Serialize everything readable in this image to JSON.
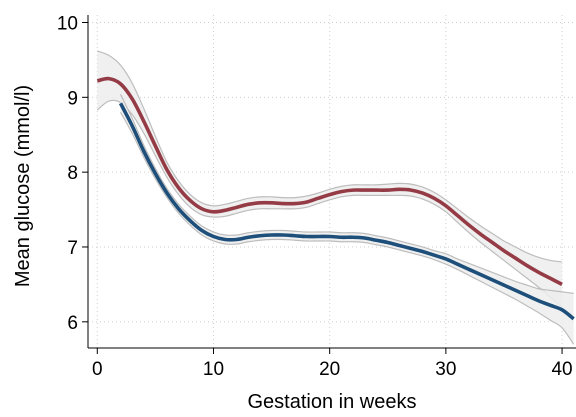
{
  "chart_data": {
    "type": "line",
    "title": "",
    "xlabel": "Gestation in weeks",
    "ylabel": "Mean glucose (mmol/l)",
    "xlim": [
      -0.8,
      41.2
    ],
    "ylim": [
      5.65,
      10.1
    ],
    "xticks": [
      0,
      10,
      20,
      30,
      40
    ],
    "yticks": [
      6,
      7,
      8,
      9,
      10
    ],
    "grid": true,
    "legend": "none",
    "band_color": "#ededed",
    "band_edge_color": "#bdbdbd",
    "series": [
      {
        "color": "#943b46",
        "x": [
          0,
          1,
          2,
          3,
          4,
          5,
          6,
          7,
          8,
          9,
          10,
          11,
          12,
          13,
          14,
          15,
          16,
          17,
          18,
          19,
          20,
          21,
          22,
          23,
          24,
          25,
          26,
          27,
          28,
          29,
          30,
          31,
          32,
          33,
          34,
          35,
          36,
          37,
          38,
          39,
          40
        ],
        "y": [
          9.22,
          9.25,
          9.18,
          8.98,
          8.68,
          8.35,
          8.03,
          7.79,
          7.62,
          7.51,
          7.47,
          7.49,
          7.53,
          7.57,
          7.59,
          7.59,
          7.58,
          7.58,
          7.6,
          7.65,
          7.7,
          7.74,
          7.76,
          7.76,
          7.76,
          7.76,
          7.77,
          7.76,
          7.72,
          7.65,
          7.55,
          7.42,
          7.29,
          7.17,
          7.06,
          6.95,
          6.85,
          6.75,
          6.66,
          6.58,
          6.5
        ],
        "lower": [
          8.83,
          8.95,
          8.93,
          8.77,
          8.52,
          8.22,
          7.93,
          7.7,
          7.53,
          7.43,
          7.4,
          7.41,
          7.45,
          7.49,
          7.51,
          7.51,
          7.51,
          7.51,
          7.53,
          7.58,
          7.63,
          7.67,
          7.69,
          7.69,
          7.69,
          7.69,
          7.69,
          7.68,
          7.64,
          7.57,
          7.47,
          7.33,
          7.19,
          7.06,
          6.94,
          6.82,
          6.7,
          6.58,
          6.46,
          6.33,
          6.2
        ],
        "upper": [
          9.62,
          9.56,
          9.43,
          9.19,
          8.85,
          8.48,
          8.13,
          7.88,
          7.7,
          7.59,
          7.55,
          7.57,
          7.61,
          7.65,
          7.67,
          7.67,
          7.66,
          7.66,
          7.68,
          7.72,
          7.77,
          7.81,
          7.83,
          7.83,
          7.83,
          7.84,
          7.85,
          7.84,
          7.8,
          7.73,
          7.63,
          7.51,
          7.39,
          7.28,
          7.18,
          7.08,
          7.0,
          6.92,
          6.86,
          6.82,
          6.8
        ]
      },
      {
        "color": "#1d4f7a",
        "x": [
          2,
          3,
          4,
          5,
          6,
          7,
          8,
          9,
          10,
          11,
          12,
          13,
          14,
          15,
          16,
          17,
          18,
          19,
          20,
          21,
          22,
          23,
          24,
          25,
          26,
          27,
          28,
          29,
          30,
          31,
          32,
          33,
          34,
          35,
          36,
          37,
          38,
          39,
          40,
          41
        ],
        "y": [
          8.92,
          8.62,
          8.28,
          7.98,
          7.72,
          7.51,
          7.35,
          7.22,
          7.14,
          7.1,
          7.1,
          7.13,
          7.15,
          7.16,
          7.16,
          7.15,
          7.14,
          7.14,
          7.14,
          7.13,
          7.13,
          7.12,
          7.09,
          7.06,
          7.02,
          6.98,
          6.94,
          6.89,
          6.84,
          6.77,
          6.7,
          6.63,
          6.56,
          6.49,
          6.42,
          6.35,
          6.28,
          6.22,
          6.16,
          6.04
        ],
        "lower": [
          8.8,
          8.52,
          8.2,
          7.91,
          7.66,
          7.45,
          7.29,
          7.16,
          7.08,
          7.04,
          7.04,
          7.07,
          7.09,
          7.1,
          7.1,
          7.09,
          7.08,
          7.08,
          7.08,
          7.07,
          7.07,
          7.06,
          7.03,
          7.0,
          6.96,
          6.92,
          6.88,
          6.83,
          6.77,
          6.7,
          6.62,
          6.54,
          6.46,
          6.38,
          6.3,
          6.21,
          6.12,
          6.02,
          5.92,
          5.7
        ],
        "upper": [
          9.04,
          8.72,
          8.36,
          8.05,
          7.78,
          7.57,
          7.41,
          7.28,
          7.2,
          7.16,
          7.16,
          7.19,
          7.21,
          7.22,
          7.22,
          7.21,
          7.2,
          7.2,
          7.2,
          7.19,
          7.19,
          7.18,
          7.15,
          7.12,
          7.08,
          7.04,
          7.0,
          6.95,
          6.91,
          6.84,
          6.78,
          6.72,
          6.66,
          6.6,
          6.54,
          6.49,
          6.44,
          6.42,
          6.4,
          6.38
        ]
      }
    ]
  }
}
